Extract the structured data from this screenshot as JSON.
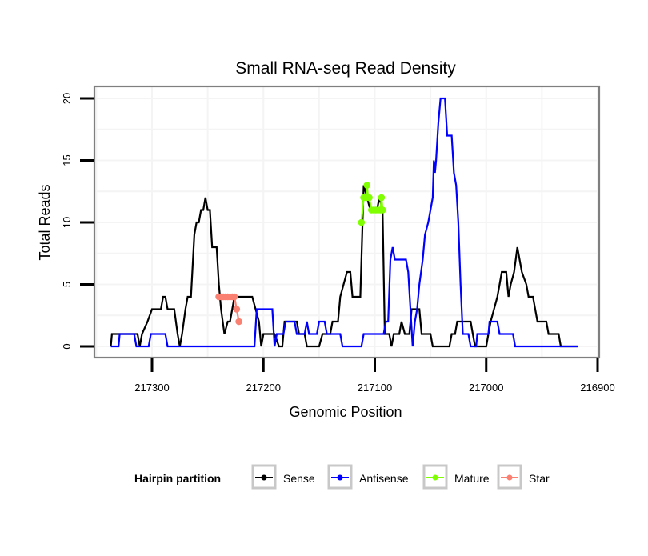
{
  "chart_data": {
    "type": "line",
    "title": "Small RNA-seq Read Density",
    "xlabel": "Genomic Position",
    "ylabel": "Total Reads",
    "xlim": [
      217337,
      216898
    ],
    "x_reversed": true,
    "ylim": [
      -0.8,
      20.6
    ],
    "x_ticks": [
      217300,
      217200,
      217100,
      217000,
      216900
    ],
    "x_tick_labels": [
      "217300",
      "217200",
      "217100",
      "217000",
      "216900"
    ],
    "y_ticks": [
      0,
      5,
      10,
      15,
      20
    ],
    "y_tick_labels": [
      "0",
      "5",
      "10",
      "15",
      "20"
    ],
    "grid": true,
    "legend": {
      "title": "Hairpin partition",
      "position": "bottom",
      "entries": [
        "Sense",
        "Antisense",
        "Mature",
        "Star"
      ]
    },
    "series": [
      {
        "name": "Sense",
        "color": "#000000",
        "points": [
          [
            217337,
            0
          ],
          [
            217336,
            1
          ],
          [
            217313,
            1
          ],
          [
            217311,
            0
          ],
          [
            217309,
            1
          ],
          [
            217304,
            2
          ],
          [
            217300,
            3
          ],
          [
            217292,
            3
          ],
          [
            217290,
            4
          ],
          [
            217288,
            4
          ],
          [
            217286,
            3
          ],
          [
            217280,
            3
          ],
          [
            217277,
            1
          ],
          [
            217275,
            0
          ],
          [
            217273,
            1
          ],
          [
            217270,
            3
          ],
          [
            217268,
            4
          ],
          [
            217265,
            4
          ],
          [
            217262,
            9
          ],
          [
            217260,
            10
          ],
          [
            217258,
            10
          ],
          [
            217256,
            11
          ],
          [
            217254,
            11
          ],
          [
            217252,
            12
          ],
          [
            217250,
            11
          ],
          [
            217248,
            11
          ],
          [
            217246,
            8
          ],
          [
            217242,
            8
          ],
          [
            217240,
            5
          ],
          [
            217238,
            3
          ],
          [
            217235,
            1
          ],
          [
            217232,
            2
          ],
          [
            217230,
            2
          ],
          [
            217228,
            3
          ],
          [
            217226,
            4
          ],
          [
            217210,
            4
          ],
          [
            217207,
            3
          ],
          [
            217204,
            2
          ],
          [
            217202,
            0
          ],
          [
            217200,
            1
          ],
          [
            217190,
            1
          ],
          [
            217186,
            0
          ],
          [
            217183,
            0
          ],
          [
            217181,
            2
          ],
          [
            217170,
            2
          ],
          [
            217168,
            1
          ],
          [
            217163,
            1
          ],
          [
            217161,
            0
          ],
          [
            217150,
            0
          ],
          [
            217147,
            1
          ],
          [
            217140,
            1
          ],
          [
            217138,
            2
          ],
          [
            217133,
            2
          ],
          [
            217131,
            4
          ],
          [
            217125,
            6
          ],
          [
            217122,
            6
          ],
          [
            217120,
            4
          ],
          [
            217113,
            4
          ],
          [
            217110,
            13
          ],
          [
            217107,
            12
          ],
          [
            217104,
            11
          ],
          [
            217098,
            11
          ],
          [
            217096,
            12
          ],
          [
            217093,
            11
          ],
          [
            217091,
            1
          ],
          [
            217087,
            1
          ],
          [
            217085,
            0
          ],
          [
            217083,
            1
          ],
          [
            217078,
            1
          ],
          [
            217076,
            2
          ],
          [
            217073,
            1
          ],
          [
            217069,
            1
          ],
          [
            217067,
            3
          ],
          [
            217060,
            3
          ],
          [
            217058,
            1
          ],
          [
            217050,
            1
          ],
          [
            217048,
            0
          ],
          [
            217033,
            0
          ],
          [
            217031,
            1
          ],
          [
            217028,
            1
          ],
          [
            217026,
            2
          ],
          [
            217014,
            2
          ],
          [
            217012,
            1
          ],
          [
            217010,
            0
          ],
          [
            217000,
            0
          ],
          [
            216998,
            1
          ],
          [
            216996,
            2
          ],
          [
            216993,
            3
          ],
          [
            216990,
            4
          ],
          [
            216988,
            5
          ],
          [
            216986,
            6
          ],
          [
            216982,
            6
          ],
          [
            216980,
            4
          ],
          [
            216978,
            5
          ],
          [
            216975,
            6
          ],
          [
            216972,
            8
          ],
          [
            216970,
            7
          ],
          [
            216968,
            6
          ],
          [
            216964,
            5
          ],
          [
            216962,
            4
          ],
          [
            216958,
            4
          ],
          [
            216956,
            3
          ],
          [
            216954,
            2
          ],
          [
            216946,
            2
          ],
          [
            216944,
            1
          ],
          [
            216935,
            1
          ],
          [
            216933,
            0
          ],
          [
            216918,
            0
          ]
        ]
      },
      {
        "name": "Antisense",
        "color": "#0000ff",
        "points": [
          [
            217337,
            0
          ],
          [
            217330,
            0
          ],
          [
            217329,
            1
          ],
          [
            217316,
            1
          ],
          [
            217314,
            0
          ],
          [
            217303,
            0
          ],
          [
            217301,
            1
          ],
          [
            217288,
            1
          ],
          [
            217286,
            0
          ],
          [
            217208,
            0
          ],
          [
            217206,
            3
          ],
          [
            217192,
            3
          ],
          [
            217190,
            0
          ],
          [
            217188,
            1
          ],
          [
            217182,
            1
          ],
          [
            217180,
            2
          ],
          [
            217172,
            2
          ],
          [
            217170,
            1
          ],
          [
            217163,
            1
          ],
          [
            217161,
            2
          ],
          [
            217159,
            1
          ],
          [
            217152,
            1
          ],
          [
            217150,
            2
          ],
          [
            217145,
            2
          ],
          [
            217143,
            1
          ],
          [
            217131,
            1
          ],
          [
            217129,
            0
          ],
          [
            217112,
            0
          ],
          [
            217110,
            1
          ],
          [
            217092,
            1
          ],
          [
            217090,
            2
          ],
          [
            217088,
            2
          ],
          [
            217086,
            7
          ],
          [
            217084,
            8
          ],
          [
            217082,
            7
          ],
          [
            217072,
            7
          ],
          [
            217070,
            6
          ],
          [
            217066,
            0
          ],
          [
            217064,
            2
          ],
          [
            217062,
            3
          ],
          [
            217060,
            5
          ],
          [
            217057,
            7
          ],
          [
            217055,
            9
          ],
          [
            217052,
            10
          ],
          [
            217050,
            11
          ],
          [
            217048,
            12
          ],
          [
            217047,
            15
          ],
          [
            217046,
            14
          ],
          [
            217045,
            15
          ],
          [
            217043,
            18
          ],
          [
            217041,
            20
          ],
          [
            217037,
            20
          ],
          [
            217035,
            17
          ],
          [
            217031,
            17
          ],
          [
            217029,
            14
          ],
          [
            217027,
            13
          ],
          [
            217025,
            10
          ],
          [
            217023,
            5
          ],
          [
            217021,
            1
          ],
          [
            217016,
            1
          ],
          [
            217014,
            0
          ],
          [
            217009,
            0
          ],
          [
            217008,
            1
          ],
          [
            216998,
            1
          ],
          [
            216997,
            2
          ],
          [
            216990,
            2
          ],
          [
            216988,
            1
          ],
          [
            216976,
            1
          ],
          [
            216974,
            0
          ],
          [
            216918,
            0
          ]
        ]
      },
      {
        "name": "Mature",
        "color": "#7fff00",
        "points": [
          [
            217112,
            10
          ],
          [
            217110,
            12
          ],
          [
            217108,
            12
          ],
          [
            217107,
            13
          ],
          [
            217106,
            12
          ],
          [
            217105,
            12
          ],
          [
            217103,
            11
          ],
          [
            217101,
            11
          ],
          [
            217099,
            11
          ],
          [
            217097,
            11
          ],
          [
            217095,
            11
          ],
          [
            217094,
            12
          ],
          [
            217093,
            11
          ]
        ]
      },
      {
        "name": "Star",
        "color": "#fa8072",
        "points": [
          [
            217240,
            4
          ],
          [
            217238,
            4
          ],
          [
            217236,
            4
          ],
          [
            217234,
            4
          ],
          [
            217232,
            4
          ],
          [
            217230,
            4
          ],
          [
            217228,
            4
          ],
          [
            217226,
            4
          ],
          [
            217224,
            3
          ],
          [
            217222,
            2
          ]
        ]
      }
    ]
  }
}
